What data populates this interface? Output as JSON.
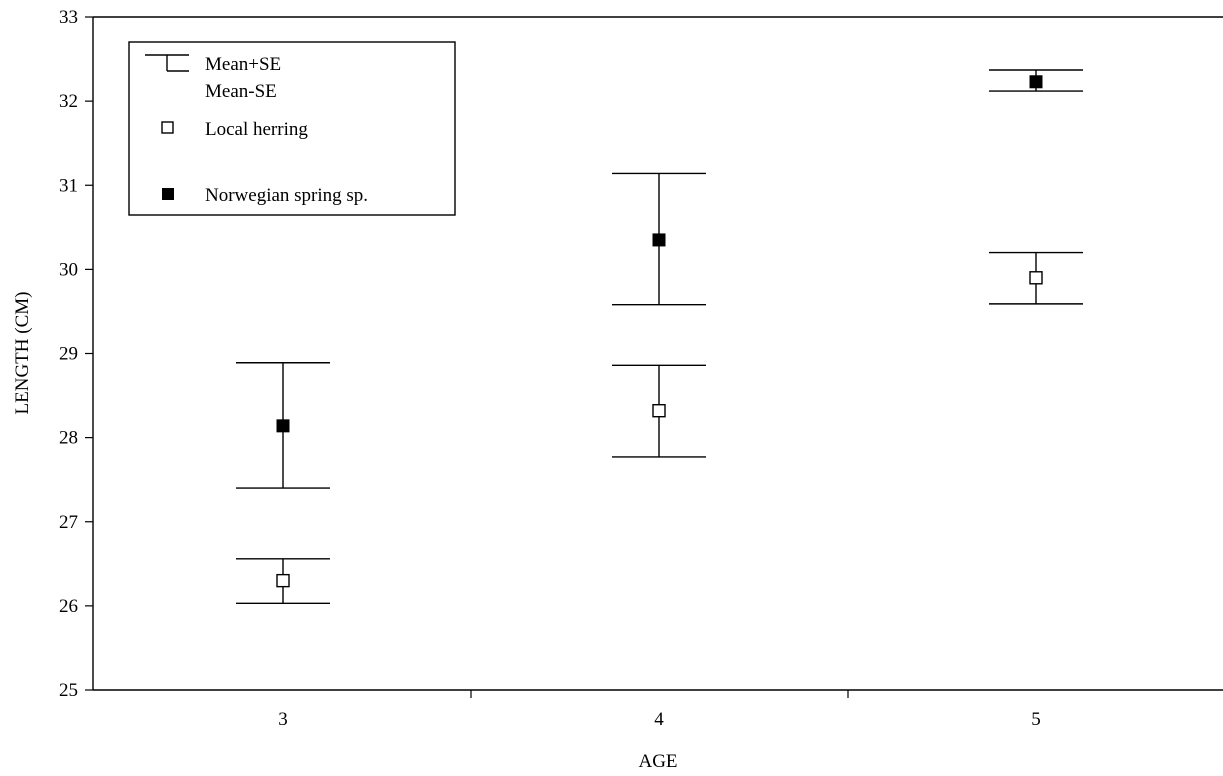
{
  "chart_data": {
    "type": "scatter",
    "title": "",
    "xlabel": "AGE",
    "ylabel": "LENGTH (CM)",
    "categories": [
      "3",
      "4",
      "5"
    ],
    "ylim": [
      25,
      33
    ],
    "yticks": [
      "25",
      "26",
      "27",
      "28",
      "29",
      "30",
      "31",
      "32",
      "33"
    ],
    "grid": false,
    "legend_position": "top-left",
    "legend": {
      "errorbar_label_1": "Mean+SE",
      "errorbar_label_2": "Mean-SE"
    },
    "series": [
      {
        "name": "Local herring",
        "marker": "open-square",
        "mean": [
          26.3,
          28.32,
          29.9
        ],
        "upper": [
          26.56,
          28.86,
          30.2
        ],
        "lower": [
          26.03,
          27.77,
          29.59
        ]
      },
      {
        "name": "Norwegian spring sp.",
        "marker": "filled-square",
        "mean": [
          28.14,
          30.35,
          32.23
        ],
        "upper": [
          28.89,
          31.14,
          32.37
        ],
        "lower": [
          27.4,
          29.58,
          32.12
        ]
      }
    ]
  }
}
